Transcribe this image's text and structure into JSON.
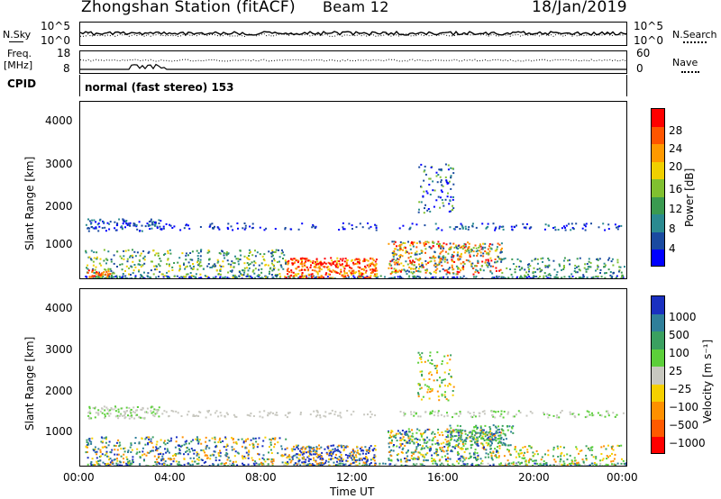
{
  "header": {
    "station": "Zhongshan Station (fitACF)",
    "beam": "Beam 12",
    "date": "18/Jan/2019"
  },
  "nsky_panel": {
    "left_label": "N.Sky",
    "left_ticks": [
      "10^5",
      "10^0"
    ],
    "right_ticks": [
      "10^5",
      "10^0"
    ],
    "right_label": "N.Search"
  },
  "freq_panel": {
    "left_label_top": "Freq.",
    "left_label_unit": "[MHz]",
    "left_ticks": [
      "18",
      "8"
    ],
    "right_ticks": [
      "60",
      "0"
    ],
    "right_label": "Nave"
  },
  "cpid": {
    "label": "CPID",
    "mode": "normal (fast stereo) 153"
  },
  "chart_data": [
    {
      "type": "heatmap",
      "title": "",
      "xlabel": "",
      "ylabel": "Slant Range [km]",
      "ylim": [
        180,
        4500
      ],
      "yticks": [
        "4000",
        "3000",
        "2000",
        "1000"
      ],
      "colorbar": {
        "label": "Power [dB]",
        "ticks": [
          "28",
          "24",
          "20",
          "16",
          "12",
          "8",
          "4"
        ],
        "colors": [
          "#ff0000",
          "#ff5500",
          "#ff9900",
          "#f0d000",
          "#80c030",
          "#3a9a50",
          "#2a8a90",
          "#1a4aa0",
          "#0000ff"
        ]
      }
    },
    {
      "type": "heatmap",
      "title": "",
      "xlabel": "Time UT",
      "ylabel": "Slant Range [km]",
      "ylim": [
        180,
        4500
      ],
      "yticks": [
        "4000",
        "3000",
        "2000",
        "1000"
      ],
      "xticks": [
        "00:00",
        "04:00",
        "08:00",
        "12:00",
        "16:00",
        "20:00",
        "00:00"
      ],
      "colorbar": {
        "label": "Velocity [m s⁻¹]",
        "ticks": [
          "1000",
          "500",
          "100",
          "25",
          "−25",
          "−100",
          "−500",
          "−1000"
        ],
        "colors": [
          "#1a30c0",
          "#2f7f9a",
          "#3aa060",
          "#5ccf3a",
          "#c8c8c0",
          "#f6d000",
          "#ff9000",
          "#ff5a00",
          "#ff0000"
        ]
      }
    }
  ]
}
